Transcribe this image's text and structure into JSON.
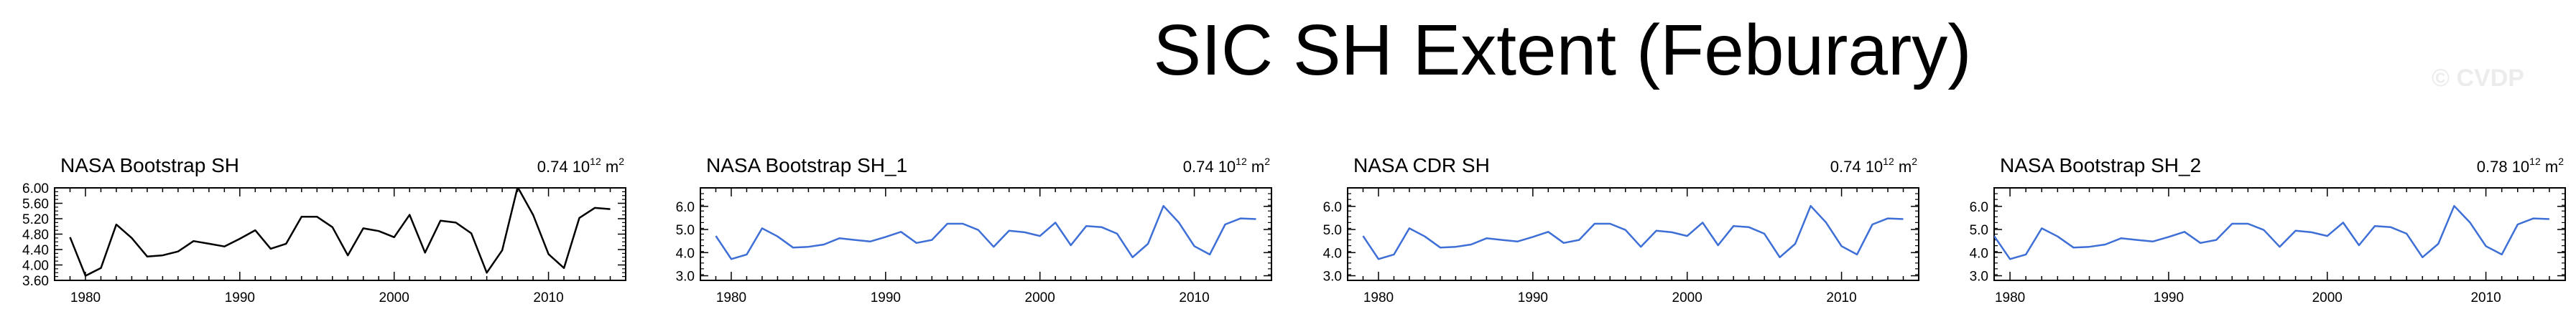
{
  "figure": {
    "title": "SIC SH Extent (Feburary)",
    "watermark": "© CVDP"
  },
  "chart_data": [
    {
      "type": "line",
      "title": "NASA Bootstrap SH",
      "extent_value": "0.74",
      "extent_unit_base": "10",
      "extent_unit_exp": "12",
      "extent_unit_suffix": "m",
      "extent_unit_suffix_exp": "2",
      "line_color": "#000000",
      "xlim": [
        1978,
        2015
      ],
      "ylim": [
        3.6,
        6.0
      ],
      "x_ticks": [
        1980,
        1990,
        2000,
        2010
      ],
      "y_ticks": [
        "3.60",
        "4.00",
        "4.40",
        "4.80",
        "5.20",
        "5.60",
        "6.00"
      ],
      "y_tick_values": [
        3.6,
        4.0,
        4.4,
        4.8,
        5.2,
        5.6,
        6.0
      ],
      "x": [
        1979,
        1980,
        1981,
        1982,
        1983,
        1984,
        1985,
        1986,
        1987,
        1988,
        1989,
        1990,
        1991,
        1992,
        1993,
        1994,
        1995,
        1996,
        1997,
        1998,
        1999,
        2000,
        2001,
        2002,
        2003,
        2004,
        2005,
        2006,
        2007,
        2008,
        2009,
        2010,
        2011,
        2012,
        2013,
        2014
      ],
      "values": [
        4.72,
        3.72,
        3.92,
        5.05,
        4.7,
        4.22,
        4.25,
        4.35,
        4.62,
        4.55,
        4.48,
        4.68,
        4.9,
        4.42,
        4.55,
        5.25,
        5.25,
        4.98,
        4.25,
        4.95,
        4.88,
        4.72,
        5.3,
        4.32,
        5.15,
        5.1,
        4.82,
        3.8,
        4.38,
        6.02,
        5.3,
        4.28,
        3.92,
        5.22,
        5.48,
        5.45
      ]
    },
    {
      "type": "line",
      "title": "NASA Bootstrap SH_1",
      "extent_value": "0.74",
      "extent_unit_base": "10",
      "extent_unit_exp": "12",
      "extent_unit_suffix": "m",
      "extent_unit_suffix_exp": "2",
      "line_color": "#3e6fd6",
      "xlim": [
        1978,
        2015
      ],
      "ylim": [
        2.8,
        6.8
      ],
      "x_ticks": [
        1980,
        1990,
        2000,
        2010
      ],
      "y_ticks": [
        "3.0",
        "4.0",
        "5.0",
        "6.0"
      ],
      "y_tick_values": [
        3.0,
        4.0,
        5.0,
        6.0
      ],
      "x": [
        1979,
        1980,
        1981,
        1982,
        1983,
        1984,
        1985,
        1986,
        1987,
        1988,
        1989,
        1990,
        1991,
        1992,
        1993,
        1994,
        1995,
        1996,
        1997,
        1998,
        1999,
        2000,
        2001,
        2002,
        2003,
        2004,
        2005,
        2006,
        2007,
        2008,
        2009,
        2010,
        2011,
        2012,
        2013,
        2014
      ],
      "values": [
        4.72,
        3.72,
        3.92,
        5.05,
        4.7,
        4.22,
        4.25,
        4.35,
        4.62,
        4.55,
        4.48,
        4.68,
        4.9,
        4.42,
        4.55,
        5.25,
        5.25,
        4.98,
        4.25,
        4.95,
        4.88,
        4.72,
        5.3,
        4.32,
        5.15,
        5.1,
        4.82,
        3.8,
        4.38,
        6.02,
        5.3,
        4.28,
        3.92,
        5.22,
        5.48,
        5.45
      ]
    },
    {
      "type": "line",
      "title": "NASA CDR SH",
      "extent_value": "0.74",
      "extent_unit_base": "10",
      "extent_unit_exp": "12",
      "extent_unit_suffix": "m",
      "extent_unit_suffix_exp": "2",
      "line_color": "#3e6fd6",
      "xlim": [
        1978,
        2015
      ],
      "ylim": [
        2.8,
        6.8
      ],
      "x_ticks": [
        1980,
        1990,
        2000,
        2010
      ],
      "y_ticks": [
        "3.0",
        "4.0",
        "5.0",
        "6.0"
      ],
      "y_tick_values": [
        3.0,
        4.0,
        5.0,
        6.0
      ],
      "x": [
        1979,
        1980,
        1981,
        1982,
        1983,
        1984,
        1985,
        1986,
        1987,
        1988,
        1989,
        1990,
        1991,
        1992,
        1993,
        1994,
        1995,
        1996,
        1997,
        1998,
        1999,
        2000,
        2001,
        2002,
        2003,
        2004,
        2005,
        2006,
        2007,
        2008,
        2009,
        2010,
        2011,
        2012,
        2013,
        2014
      ],
      "values": [
        4.72,
        3.72,
        3.92,
        5.05,
        4.7,
        4.22,
        4.25,
        4.35,
        4.62,
        4.55,
        4.48,
        4.68,
        4.9,
        4.42,
        4.55,
        5.25,
        5.25,
        4.98,
        4.25,
        4.95,
        4.88,
        4.72,
        5.3,
        4.32,
        5.15,
        5.1,
        4.82,
        3.8,
        4.38,
        6.02,
        5.3,
        4.28,
        3.92,
        5.22,
        5.48,
        5.45
      ]
    },
    {
      "type": "line",
      "title": "NASA Bootstrap SH_2",
      "extent_value": "0.78",
      "extent_unit_base": "10",
      "extent_unit_exp": "12",
      "extent_unit_suffix": "m",
      "extent_unit_suffix_exp": "2",
      "line_color": "#3e6fd6",
      "xlim": [
        1979,
        2015
      ],
      "ylim": [
        2.8,
        6.8
      ],
      "x_ticks": [
        1980,
        1990,
        2000,
        2010
      ],
      "y_ticks": [
        "3.0",
        "4.0",
        "5.0",
        "6.0"
      ],
      "y_tick_values": [
        3.0,
        4.0,
        5.0,
        6.0
      ],
      "x": [
        1979,
        1980,
        1981,
        1982,
        1983,
        1984,
        1985,
        1986,
        1987,
        1988,
        1989,
        1990,
        1991,
        1992,
        1993,
        1994,
        1995,
        1996,
        1997,
        1998,
        1999,
        2000,
        2001,
        2002,
        2003,
        2004,
        2005,
        2006,
        2007,
        2008,
        2009,
        2010,
        2011,
        2012,
        2013,
        2014
      ],
      "values": [
        4.72,
        3.72,
        3.92,
        5.05,
        4.7,
        4.22,
        4.25,
        4.35,
        4.62,
        4.55,
        4.48,
        4.68,
        4.9,
        4.42,
        4.55,
        5.25,
        5.25,
        4.98,
        4.25,
        4.95,
        4.88,
        4.72,
        5.3,
        4.32,
        5.15,
        5.1,
        4.82,
        3.8,
        4.38,
        6.02,
        5.3,
        4.28,
        3.92,
        5.22,
        5.48,
        5.45
      ]
    }
  ]
}
